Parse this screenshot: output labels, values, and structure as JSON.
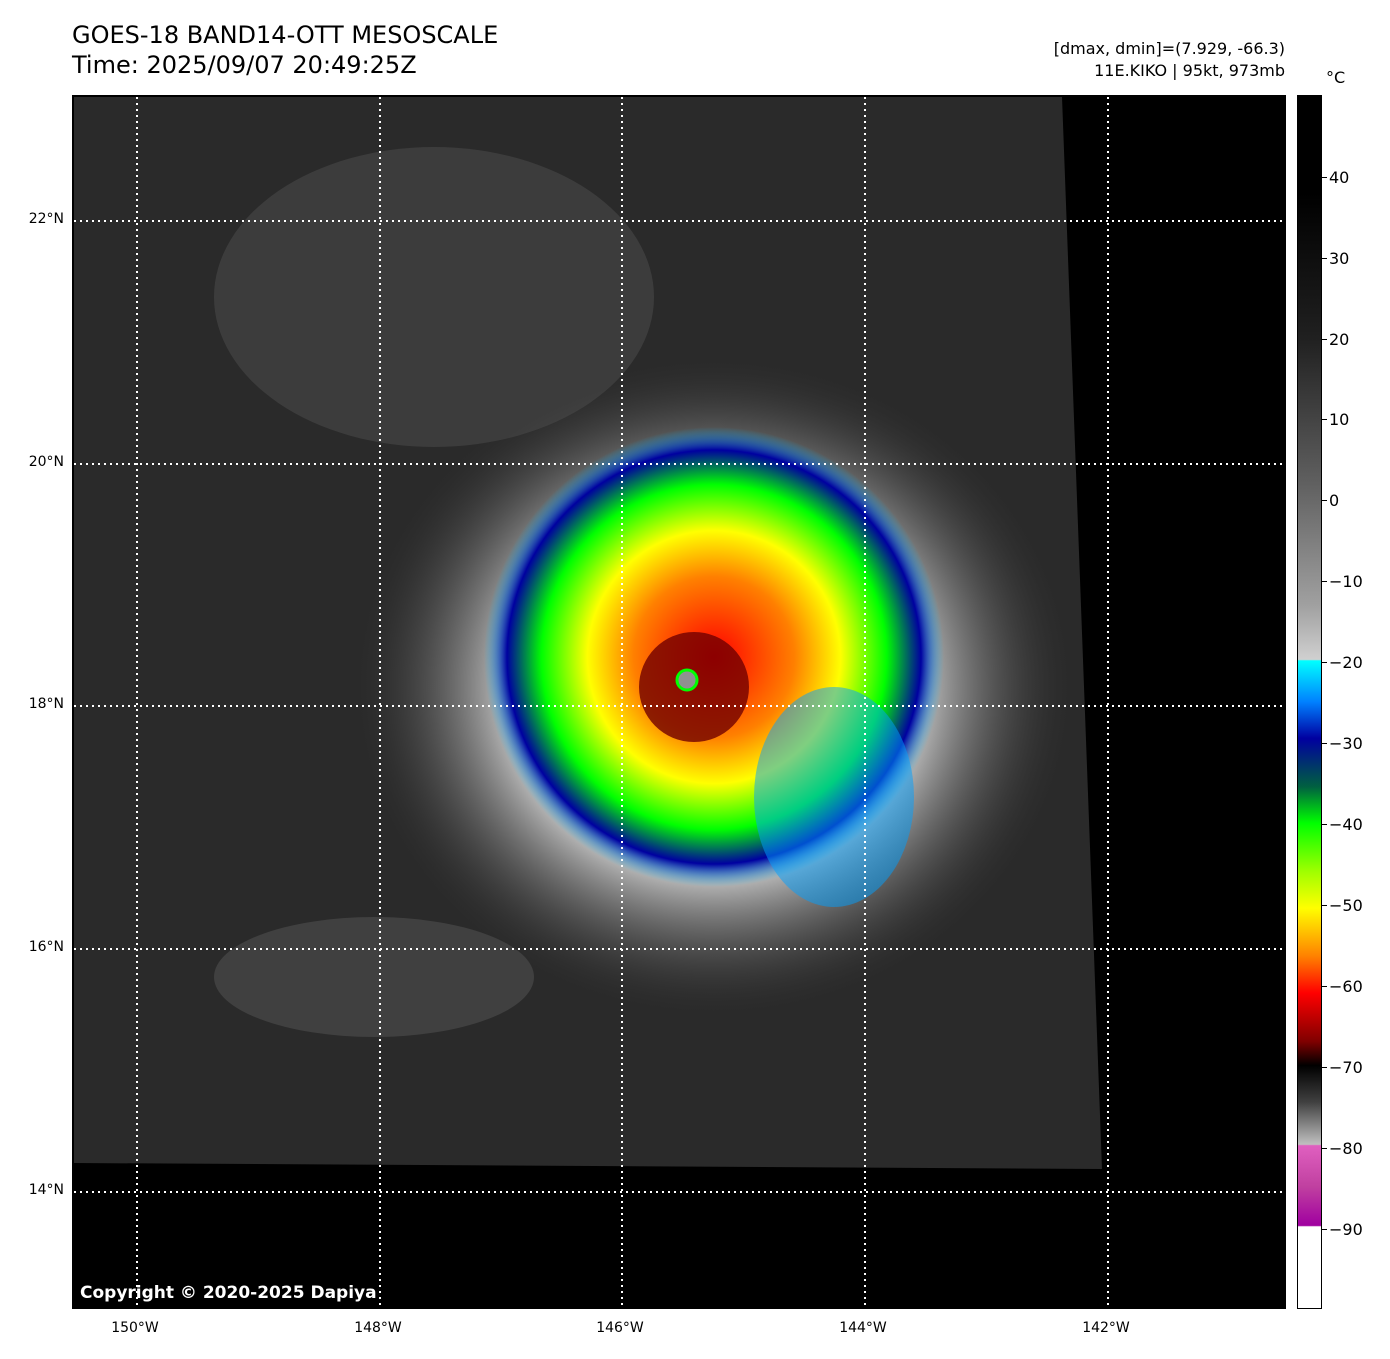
{
  "header": {
    "title_line1": "GOES-18 BAND14-OTT MESOSCALE",
    "title_line2": "Time: 2025/09/07 20:49:25Z",
    "meta_line1": "[dmax, dmin]=(7.929, -66.3)",
    "meta_line2": "11E.KIKO | 95kt, 973mb"
  },
  "map": {
    "lat_labels": [
      "22°N",
      "20°N",
      "18°N",
      "16°N",
      "14°N"
    ],
    "lon_labels": [
      "150°W",
      "148°W",
      "146°W",
      "144°W",
      "142°W"
    ],
    "copyright": "Copyright © 2020-2025 Dapiya"
  },
  "colorbar": {
    "unit": "°C",
    "ticks": [
      "40",
      "30",
      "20",
      "10",
      "0",
      "−10",
      "−20",
      "−30",
      "−40",
      "−50",
      "−60",
      "−70",
      "−80",
      "−90"
    ],
    "colors": {
      "cyan": "#00ffff",
      "blue": "#0000a0",
      "green": "#00ff00",
      "yellow": "#ffff00",
      "orange": "#ff8000",
      "red": "#ff0000",
      "dark_red": "#600000",
      "magenta": "#e060c0"
    }
  }
}
